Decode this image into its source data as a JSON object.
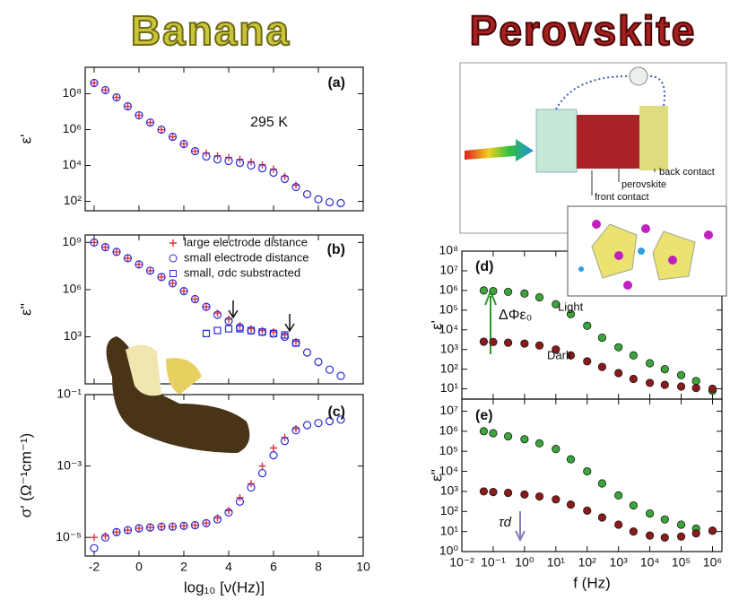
{
  "headers": {
    "banana": "Banana",
    "perovskite": "Perovskite"
  },
  "diagram": {
    "labels": [
      "back contact",
      "perovskite",
      "front contact"
    ]
  },
  "chart_data": [
    {
      "type": "scatter",
      "xscale": "linear",
      "yscale": "log",
      "ylabel": "ε'",
      "annotations": [
        "(a)",
        "295 K"
      ],
      "x": [
        -2,
        -1.5,
        -1,
        -0.5,
        0,
        0.5,
        1,
        1.5,
        2,
        2.5,
        3,
        3.5,
        4,
        4.5,
        5,
        5.5,
        6,
        6.5,
        7,
        7.5,
        8,
        8.5,
        9
      ],
      "xlim": [
        -2.4,
        10
      ],
      "xticks": [
        -2,
        0,
        2,
        4,
        6,
        8,
        10
      ],
      "ylim": [
        30,
        3000000000.0
      ],
      "yticks": [
        {
          "value": 100,
          "label": "10²"
        },
        {
          "value": 10000,
          "label": "10⁴"
        },
        {
          "value": 1000000,
          "label": "10⁶"
        },
        {
          "value": 100000000,
          "label": "10⁸"
        }
      ],
      "series": [
        {
          "marker": "+",
          "color": "#e0303a",
          "values": [
            400000000.0,
            160000000.0,
            63000000.0,
            20000000.0,
            6300000.0,
            2500000.0,
            1000000.0,
            400000.0,
            160000.0,
            63000.0,
            50000.0,
            35000.0,
            28000.0,
            22000.0,
            16000.0,
            11000.0,
            6300.0,
            2500.0,
            800,
            null,
            null,
            null,
            null
          ]
        },
        {
          "marker": "o",
          "color": "#2a2ad8",
          "values": [
            400000000.0,
            160000000.0,
            63000000.0,
            20000000.0,
            6300000.0,
            2500000.0,
            1000000.0,
            400000.0,
            160000.0,
            63000.0,
            32000.0,
            22000.0,
            18000.0,
            14000.0,
            10000.0,
            7000.0,
            4000.0,
            1800.0,
            630,
            250,
            130,
            90,
            80
          ]
        }
      ]
    },
    {
      "type": "scatter",
      "xscale": "linear",
      "yscale": "log",
      "legend": true,
      "ylabel": "ε''",
      "annotations": [
        "(b)"
      ],
      "x": [
        -2,
        -1.5,
        -1,
        -0.5,
        0,
        0.5,
        1,
        1.5,
        2,
        2.5,
        3,
        3.5,
        4,
        4.5,
        5,
        5.5,
        6,
        6.5,
        7,
        7.5,
        8,
        8.5,
        9
      ],
      "xlim": [
        -2.4,
        10
      ],
      "xticks": [
        -2,
        0,
        2,
        4,
        6,
        8,
        10
      ],
      "ylim": [
        1,
        3000000000.0
      ],
      "yticks": [
        {
          "value": 1000,
          "label": "10³"
        },
        {
          "value": 1000000,
          "label": "10⁶"
        },
        {
          "value": 1000000000,
          "label": "10⁹"
        }
      ],
      "series": [
        {
          "name": "large electrode distance",
          "marker": "+",
          "color": "#e0303a",
          "values": [
            1000000000.0,
            500000000.0,
            250000000.0,
            100000000.0,
            40000000.0,
            16000000.0,
            6300000.0,
            2500000.0,
            800000.0,
            250000.0,
            80000.0,
            32000.0,
            13000.0,
            5000.0,
            3200.0,
            2500.0,
            2000.0,
            1300.0,
            500,
            null,
            null,
            null,
            null
          ]
        },
        {
          "name": "small electrode distance",
          "marker": "o",
          "color": "#2a2ad8",
          "values": [
            1000000000.0,
            500000000.0,
            250000000.0,
            100000000.0,
            40000000.0,
            16000000.0,
            6300000.0,
            2500000.0,
            800000.0,
            250000.0,
            80000.0,
            25000.0,
            10000.0,
            4000.0,
            2500.0,
            2000.0,
            1600.0,
            1000.0,
            400,
            100,
            25,
            8,
            3.2
          ]
        },
        {
          "name": "small, σdc substracted",
          "marker": "s",
          "color": "#2a2ad8",
          "values": [
            null,
            null,
            null,
            null,
            null,
            null,
            null,
            null,
            null,
            null,
            1600.0,
            2500.0,
            3200.0,
            3200.0,
            2500.0,
            2000.0,
            1600.0,
            1300.0,
            400,
            null,
            null,
            null,
            null
          ]
        }
      ]
    },
    {
      "type": "scatter",
      "xscale": "linear",
      "yscale": "log",
      "ylabel": "σ' (Ω⁻¹cm⁻¹)",
      "xlabel": "log₁₀ [ν(Hz)]",
      "annotations": [
        "(c)"
      ],
      "x": [
        -2,
        -1.5,
        -1,
        -0.5,
        0,
        0.5,
        1,
        1.5,
        2,
        2.5,
        3,
        3.5,
        4,
        4.5,
        5,
        5.5,
        6,
        6.5,
        7,
        7.5,
        8,
        8.5,
        9
      ],
      "xlim": [
        -2.4,
        10
      ],
      "xticks": [
        -2,
        0,
        2,
        4,
        6,
        8,
        10
      ],
      "ylim": [
        3e-06,
        0.1
      ],
      "yticks": [
        {
          "value": 1e-05,
          "label": "10⁻⁵"
        },
        {
          "value": 0.001,
          "label": "10⁻³"
        },
        {
          "value": 0.1,
          "label": "10⁻¹"
        }
      ],
      "series": [
        {
          "marker": "+",
          "color": "#e0303a",
          "values": [
            1e-05,
            1.1e-05,
            1.4e-05,
            1.6e-05,
            1.8e-05,
            1.9e-05,
            2e-05,
            2e-05,
            2.1e-05,
            2.2e-05,
            2.5e-05,
            3.5e-05,
            5.6e-05,
            0.00013,
            0.00032,
            0.001,
            0.0032,
            0.0063,
            0.011,
            null,
            null,
            null,
            null
          ]
        },
        {
          "marker": "o",
          "color": "#2a2ad8",
          "values": [
            5e-06,
            1e-05,
            1.4e-05,
            1.6e-05,
            1.8e-05,
            1.9e-05,
            2e-05,
            2e-05,
            2.1e-05,
            2.2e-05,
            2.5e-05,
            3.2e-05,
            5e-05,
            0.0001,
            0.00025,
            0.00063,
            0.002,
            0.005,
            0.01,
            0.014,
            0.016,
            0.018,
            0.02
          ]
        }
      ]
    },
    {
      "type": "scatter",
      "xscale": "log",
      "yscale": "log",
      "ylabel": "ε'",
      "annotations": [
        "(d)",
        "Light",
        "Dark",
        "ΔΦε₀"
      ],
      "x": [
        0.05,
        0.1,
        0.3,
        1,
        3,
        10,
        30,
        100,
        300,
        1000,
        3000,
        10000,
        30000,
        100000,
        300000,
        1000000
      ],
      "xlim": [
        0.01,
        2000000
      ],
      "xticks": [
        0.01,
        0.1,
        1,
        10,
        100,
        1000,
        10000,
        100000,
        1000000
      ],
      "ylim": [
        3,
        100000000
      ],
      "yticks": [
        {
          "value": 10,
          "label": "10¹"
        },
        {
          "value": 100,
          "label": "10²"
        },
        {
          "value": 1000,
          "label": "10³"
        },
        {
          "value": 10000,
          "label": "10⁴"
        },
        {
          "value": 100000,
          "label": "10⁵"
        },
        {
          "value": 1000000,
          "label": "10⁶"
        },
        {
          "value": 10000000,
          "label": "10⁷"
        },
        {
          "value": 100000000,
          "label": "10⁸"
        }
      ],
      "series": [
        {
          "marker": "dot",
          "color": "#3aa63a",
          "values": [
            1000000.0,
            930000.0,
            850000.0,
            700000.0,
            450000.0,
            200000.0,
            63000.0,
            16000.0,
            4000.0,
            1300.0,
            500,
            200,
            100,
            50,
            25,
            8
          ]
        },
        {
          "marker": "dot",
          "color": "#8b1a1a",
          "values": [
            2500.0,
            2400.0,
            2200.0,
            2000.0,
            1600.0,
            1000.0,
            500,
            250,
            130,
            63,
            32,
            20,
            16,
            13,
            11,
            10
          ]
        }
      ]
    },
    {
      "type": "scatter",
      "xscale": "log",
      "yscale": "log",
      "ylabel": "ε''",
      "xlabel": "f (Hz)",
      "annotations": [
        "(e)",
        "τd"
      ],
      "x": [
        0.05,
        0.1,
        0.3,
        1,
        3,
        10,
        30,
        100,
        300,
        1000,
        3000,
        10000,
        30000,
        100000,
        300000,
        1000000
      ],
      "xlim": [
        0.01,
        2000000
      ],
      "xticks": [
        {
          "value": 0.01,
          "label": "10⁻²"
        },
        {
          "value": 0.1,
          "label": "10⁻¹"
        },
        {
          "value": 1,
          "label": "10⁰"
        },
        {
          "value": 10,
          "label": "10¹"
        },
        {
          "value": 100,
          "label": "10²"
        },
        {
          "value": 1000,
          "label": "10³"
        },
        {
          "value": 10000,
          "label": "10⁴"
        },
        {
          "value": 100000,
          "label": "10⁵"
        },
        {
          "value": 1000000,
          "label": "10⁶"
        }
      ],
      "ylim": [
        1,
        40000000
      ],
      "yticks": [
        {
          "value": 1,
          "label": "10⁰"
        },
        {
          "value": 10,
          "label": "10¹"
        },
        {
          "value": 100,
          "label": "10²"
        },
        {
          "value": 1000,
          "label": "10³"
        },
        {
          "value": 10000,
          "label": "10⁴"
        },
        {
          "value": 100000,
          "label": "10⁵"
        },
        {
          "value": 1000000,
          "label": "10⁶"
        },
        {
          "value": 10000000,
          "label": "10⁷"
        }
      ],
      "series": [
        {
          "marker": "dot",
          "color": "#3aa63a",
          "values": [
            1000000.0,
            800000.0,
            560000.0,
            400000.0,
            250000.0,
            130000.0,
            40000.0,
            10000.0,
            2500.0,
            630,
            200,
            80,
            40,
            22,
            14,
            11
          ]
        },
        {
          "marker": "dot",
          "color": "#8b1a1a",
          "values": [
            1000.0,
            930,
            850,
            700,
            560,
            400,
            220,
            110,
            50,
            22,
            10,
            6.3,
            5,
            5.6,
            8,
            11
          ]
        }
      ]
    }
  ]
}
